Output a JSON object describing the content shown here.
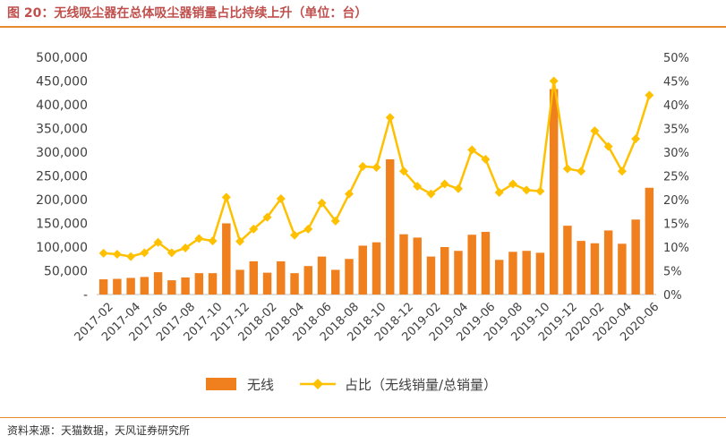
{
  "header": {
    "title": "图 20：无线吸尘器在总体吸尘器销量占比持续上升（单位：台）"
  },
  "footer": {
    "source": "资料来源：天猫数据，天风证券研究所"
  },
  "colors": {
    "bar": "#f0801e",
    "line": "#ffc000",
    "accent": "#e98a2f",
    "title": "#c0504d",
    "axis": "#808080"
  },
  "chart_data": {
    "type": "bar",
    "x": [
      "2017-02",
      "2017-03",
      "2017-04",
      "2017-05",
      "2017-06",
      "2017-07",
      "2017-08",
      "2017-09",
      "2017-10",
      "2017-11",
      "2017-12",
      "2018-01",
      "2018-02",
      "2018-03",
      "2018-04",
      "2018-05",
      "2018-06",
      "2018-07",
      "2018-08",
      "2018-09",
      "2018-10",
      "2018-11",
      "2018-12",
      "2019-01",
      "2019-02",
      "2019-03",
      "2019-04",
      "2019-05",
      "2019-06",
      "2019-07",
      "2019-08",
      "2019-09",
      "2019-10",
      "2019-11",
      "2019-12",
      "2020-01",
      "2020-02",
      "2020-03",
      "2020-04",
      "2020-05",
      "2020-06"
    ],
    "x_tick_labels": [
      "2017-02",
      "2017-04",
      "2017-06",
      "2017-08",
      "2017-10",
      "2017-12",
      "2018-02",
      "2018-04",
      "2018-06",
      "2018-08",
      "2018-10",
      "2018-12",
      "2019-02",
      "2019-04",
      "2019-06",
      "2019-08",
      "2019-10",
      "2019-12",
      "2020-02",
      "2020-04",
      "2020-06"
    ],
    "series": [
      {
        "name": "无线",
        "type": "bar",
        "axis": "left",
        "values": [
          32000,
          33000,
          35000,
          37000,
          47000,
          30000,
          36000,
          45000,
          45000,
          150000,
          52000,
          70000,
          46000,
          70000,
          45000,
          60000,
          80000,
          52000,
          75000,
          103000,
          110000,
          285000,
          127000,
          120000,
          80000,
          100000,
          92000,
          126000,
          132000,
          73000,
          90000,
          92000,
          88000,
          433000,
          145000,
          113000,
          108000,
          135000,
          107000,
          158000,
          225000
        ]
      },
      {
        "name": "占比（无线销量/总销量）",
        "type": "line",
        "axis": "right",
        "values": [
          8.7,
          8.5,
          8.0,
          8.8,
          11.0,
          8.8,
          9.8,
          11.8,
          11.3,
          20.5,
          11.2,
          13.8,
          16.3,
          20.2,
          12.5,
          13.8,
          19.3,
          15.5,
          21.2,
          27.0,
          26.8,
          37.3,
          26.0,
          22.8,
          21.2,
          23.3,
          22.3,
          30.5,
          28.5,
          21.5,
          23.3,
          22.0,
          21.8,
          45.0,
          26.5,
          26.0,
          34.5,
          31.2,
          26.0,
          32.8,
          42.0
        ]
      }
    ],
    "y_left": {
      "ylim": [
        0,
        500000
      ],
      "ticks": [
        "-",
        "50,000",
        "100,000",
        "150,000",
        "200,000",
        "250,000",
        "300,000",
        "350,000",
        "400,000",
        "450,000",
        "500,000"
      ]
    },
    "y_right": {
      "ylim": [
        0,
        50
      ],
      "ticks": [
        "0%",
        "5%",
        "10%",
        "15%",
        "20%",
        "25%",
        "30%",
        "35%",
        "40%",
        "45%",
        "50%"
      ]
    },
    "legend": {
      "placement": "bottom",
      "items": [
        "无线",
        "占比（无线销量/总销量）"
      ]
    },
    "grid": false
  }
}
